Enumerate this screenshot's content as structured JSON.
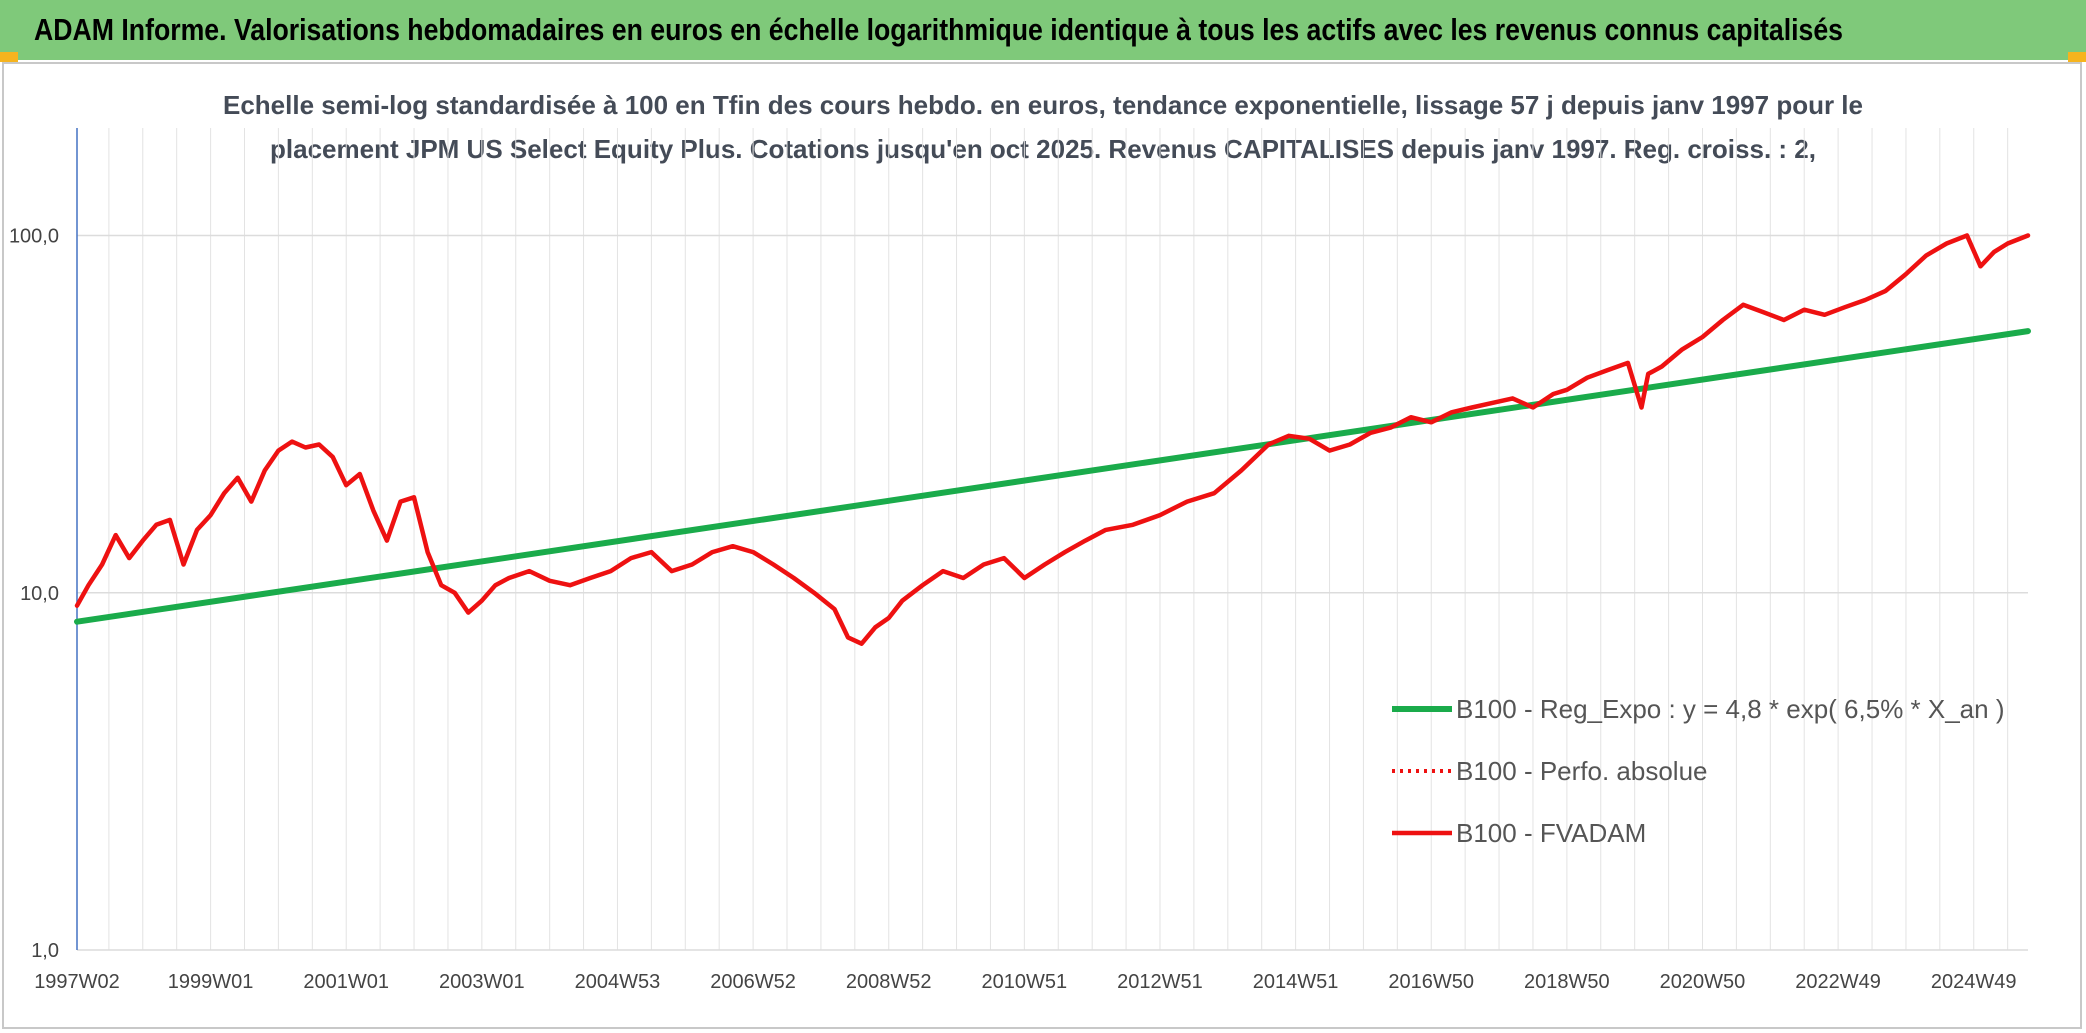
{
  "header": {
    "title": "ADAM Informe. Valorisations hebdomadaires en euros en échelle logarithmique identique à tous les actifs avec les revenus connus capitalisés"
  },
  "colors": {
    "banner": "#7fc97a",
    "corner_accent": "#f6b41e",
    "regression_line": "#1aab4b",
    "perf_line": "#ee1111",
    "fvadam_line": "#ee1111"
  },
  "chart_data": {
    "type": "line",
    "subtitle_line1": "Echelle semi-log standardisée à 100 en Tfin des cours hebdo. en euros, tendance exponentielle, lissage 57 j depuis janv 1997 pour le",
    "subtitle_line2": "placement JPM US Select Equity Plus. Cotations jusqu'en oct 2025. Revenus CAPITALISES depuis janv 1997. Reg. croiss. : 2,",
    "y_scale": "log",
    "ylim": [
      1,
      200
    ],
    "y_ticks": [
      {
        "value": 100,
        "label": "100,0"
      },
      {
        "value": 10,
        "label": "10,0"
      },
      {
        "value": 1,
        "label": "1,0"
      }
    ],
    "xlim": [
      1997.03,
      2025.8
    ],
    "x_ticks": [
      {
        "value": 1997.03,
        "label": "1997W02"
      },
      {
        "value": 1999.0,
        "label": "1999W01"
      },
      {
        "value": 2001.0,
        "label": "2001W01"
      },
      {
        "value": 2003.0,
        "label": "2003W01"
      },
      {
        "value": 2005.0,
        "label": "2004W53"
      },
      {
        "value": 2007.0,
        "label": "2006W52"
      },
      {
        "value": 2009.0,
        "label": "2008W52"
      },
      {
        "value": 2011.0,
        "label": "2010W51"
      },
      {
        "value": 2013.0,
        "label": "2012W51"
      },
      {
        "value": 2015.0,
        "label": "2014W51"
      },
      {
        "value": 2017.0,
        "label": "2016W50"
      },
      {
        "value": 2019.0,
        "label": "2018W50"
      },
      {
        "value": 2021.0,
        "label": "2020W50"
      },
      {
        "value": 2023.0,
        "label": "2022W49"
      },
      {
        "value": 2025.0,
        "label": "2024W49"
      }
    ],
    "grid": "vertical-and-horizontal",
    "legend_position": "lower-right",
    "series": [
      {
        "name": "B100 - Reg_Expo : y = 4,8 * exp( 6,5% *  X_an )",
        "style": "solid-green",
        "x": [
          1997.03,
          2025.8
        ],
        "y": [
          8.3,
          54
        ]
      },
      {
        "name": "B100 - Perfo. absolue",
        "style": "dotted-red",
        "x": [],
        "y": []
      },
      {
        "name": "B100 - FVADAM",
        "style": "solid-red",
        "x": [
          1997.03,
          1997.2,
          1997.4,
          1997.6,
          1997.8,
          1998.0,
          1998.2,
          1998.4,
          1998.6,
          1998.8,
          1999.0,
          1999.2,
          1999.4,
          1999.6,
          1999.8,
          2000.0,
          2000.2,
          2000.4,
          2000.6,
          2000.8,
          2001.0,
          2001.2,
          2001.4,
          2001.6,
          2001.8,
          2002.0,
          2002.2,
          2002.4,
          2002.6,
          2002.8,
          2003.0,
          2003.2,
          2003.4,
          2003.7,
          2004.0,
          2004.3,
          2004.6,
          2004.9,
          2005.2,
          2005.5,
          2005.8,
          2006.1,
          2006.4,
          2006.7,
          2007.0,
          2007.3,
          2007.6,
          2007.9,
          2008.2,
          2008.4,
          2008.6,
          2008.8,
          2009.0,
          2009.2,
          2009.5,
          2009.8,
          2010.1,
          2010.4,
          2010.7,
          2011.0,
          2011.3,
          2011.6,
          2011.9,
          2012.2,
          2012.6,
          2013.0,
          2013.4,
          2013.8,
          2014.2,
          2014.6,
          2014.9,
          2015.2,
          2015.5,
          2015.8,
          2016.1,
          2016.4,
          2016.7,
          2017.0,
          2017.3,
          2017.6,
          2017.9,
          2018.2,
          2018.5,
          2018.8,
          2019.0,
          2019.3,
          2019.6,
          2019.9,
          2020.1,
          2020.2,
          2020.4,
          2020.7,
          2021.0,
          2021.3,
          2021.6,
          2021.9,
          2022.2,
          2022.5,
          2022.8,
          2023.1,
          2023.4,
          2023.7,
          2024.0,
          2024.3,
          2024.6,
          2024.9,
          2025.1,
          2025.3,
          2025.5,
          2025.8
        ],
        "y": [
          9.2,
          10.5,
          12.0,
          14.5,
          12.5,
          14.0,
          15.5,
          16.0,
          12.0,
          15.0,
          16.5,
          19.0,
          21.0,
          18.0,
          22.0,
          25.0,
          26.5,
          25.5,
          26.0,
          24.0,
          20.0,
          21.5,
          17.0,
          14.0,
          18.0,
          18.5,
          13.0,
          10.5,
          10.0,
          8.8,
          9.5,
          10.5,
          11.0,
          11.5,
          10.8,
          10.5,
          11.0,
          11.5,
          12.5,
          13.0,
          11.5,
          12.0,
          13.0,
          13.5,
          13.0,
          12.0,
          11.0,
          10.0,
          9.0,
          7.5,
          7.2,
          8.0,
          8.5,
          9.5,
          10.5,
          11.5,
          11.0,
          12.0,
          12.5,
          11.0,
          12.0,
          13.0,
          14.0,
          15.0,
          15.5,
          16.5,
          18.0,
          19.0,
          22.0,
          26.0,
          27.5,
          27.0,
          25.0,
          26.0,
          28.0,
          29.0,
          31.0,
          30.0,
          32.0,
          33.0,
          34.0,
          35.0,
          33.0,
          36.0,
          37.0,
          40.0,
          42.0,
          44.0,
          33.0,
          41.0,
          43.0,
          48.0,
          52.0,
          58.0,
          64.0,
          61.0,
          58.0,
          62.0,
          60.0,
          63.0,
          66.0,
          70.0,
          78.0,
          88.0,
          95.0,
          100.0,
          82.0,
          90.0,
          95.0,
          100.0
        ]
      }
    ]
  }
}
